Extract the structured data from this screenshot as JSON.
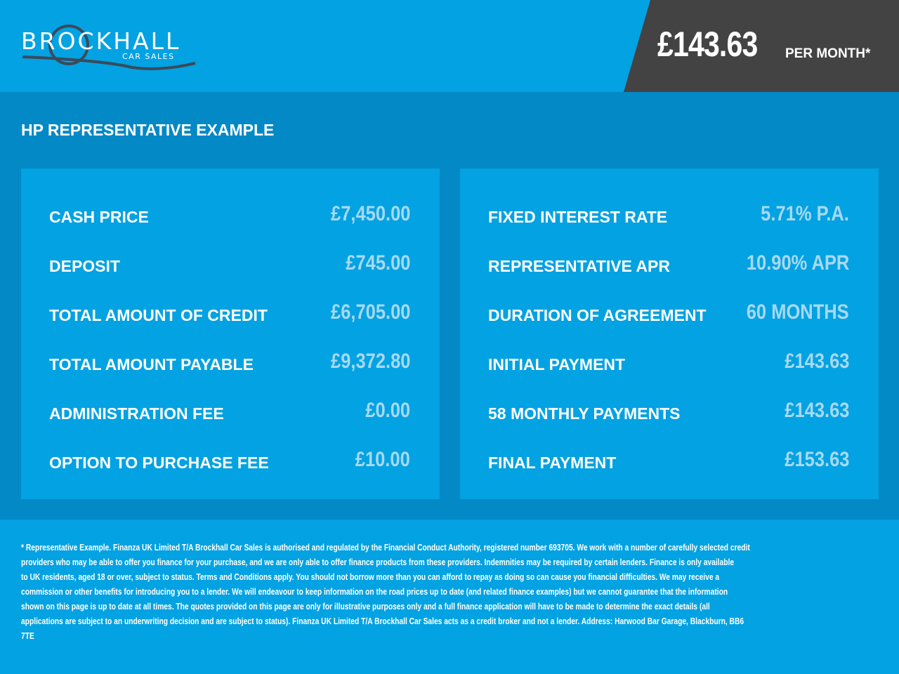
{
  "brand": {
    "name": "BROCKHALL",
    "sub": "CAR SALES"
  },
  "headline": {
    "price": "£143.63",
    "suffix": "PER MONTH*"
  },
  "colors": {
    "primary": "#03a2e2",
    "section": "#0389c6",
    "dark": "#434343",
    "value": "#a6d9f2"
  },
  "section_title": "HP REPRESENTATIVE EXAMPLE",
  "left_panel": [
    {
      "label": "CASH PRICE",
      "value": "£7,450.00"
    },
    {
      "label": "DEPOSIT",
      "value": "£745.00"
    },
    {
      "label": "TOTAL AMOUNT OF CREDIT",
      "value": "£6,705.00"
    },
    {
      "label": "TOTAL AMOUNT PAYABLE",
      "value": "£9,372.80"
    },
    {
      "label": "ADMINISTRATION FEE",
      "value": "£0.00"
    },
    {
      "label": "OPTION TO PURCHASE FEE",
      "value": "£10.00"
    }
  ],
  "right_panel": [
    {
      "label": "FIXED INTEREST RATE",
      "value": "5.71% P.A."
    },
    {
      "label": "REPRESENTATIVE APR",
      "value": "10.90% APR"
    },
    {
      "label": "DURATION OF AGREEMENT",
      "value": "60 MONTHS"
    },
    {
      "label": "INITIAL PAYMENT",
      "value": "£143.63"
    },
    {
      "label": "58 MONTHLY PAYMENTS",
      "value": "£143.63"
    },
    {
      "label": "FINAL PAYMENT",
      "value": "£153.63"
    }
  ],
  "disclaimer": [
    "* Representative Example. Finanza UK Limited T/A Brockhall Car Sales is authorised and regulated by the Financial Conduct Authority, registered number 693705. We work with a number of carefully selected credit",
    "providers who may be able to offer you finance for your purchase, and we are only able to offer finance products from these providers. Indemnities may be required by certain lenders. Finance is only available",
    "to UK residents, aged 18 or over, subject to status. Terms and Conditions apply. You should not borrow more than you can afford to repay as doing so can cause you financial difficulties. We may receive a",
    "commission or other benefits for introducing you to a lender. We will endeavour to keep information on the road prices up to date (and related finance examples) but we cannot guarantee that the information",
    "shown on this page is up to date at all times. The quotes provided on this page are only for illustrative purposes only and a full finance application will have to be made to determine the exact details (all",
    "applications are subject to an underwriting decision and are subject to status). Finanza UK Limited T/A Brockhall Car Sales acts as a credit broker and not a lender. Address: Harwood Bar Garage, Blackburn, BB6",
    "7TE"
  ]
}
